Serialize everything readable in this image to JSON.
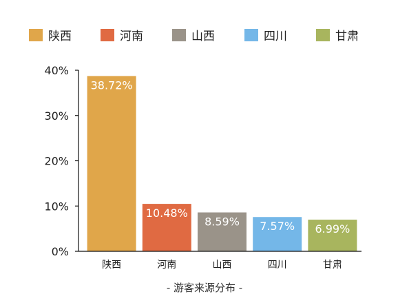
{
  "chart_data": {
    "type": "bar",
    "categories": [
      "陕西",
      "河南",
      "山西",
      "四川",
      "甘肃"
    ],
    "values": [
      38.72,
      10.48,
      8.59,
      7.57,
      6.99
    ],
    "value_labels": [
      "38.72%",
      "10.48%",
      "8.59%",
      "7.57%",
      "6.99%"
    ],
    "colors": [
      "#E0A64A",
      "#E06A42",
      "#9A9389",
      "#74B7E8",
      "#A8B55E"
    ],
    "legend": [
      "陕西",
      "河南",
      "山西",
      "四川",
      "甘肃"
    ],
    "legend_placement": "top",
    "ylim": [
      0,
      40
    ],
    "yticks": [
      0,
      10,
      20,
      30,
      40
    ],
    "ytick_labels": [
      "0%",
      "10%",
      "20%",
      "30%",
      "40%"
    ],
    "caption": "- 游客来源分布 -",
    "grid": false
  }
}
